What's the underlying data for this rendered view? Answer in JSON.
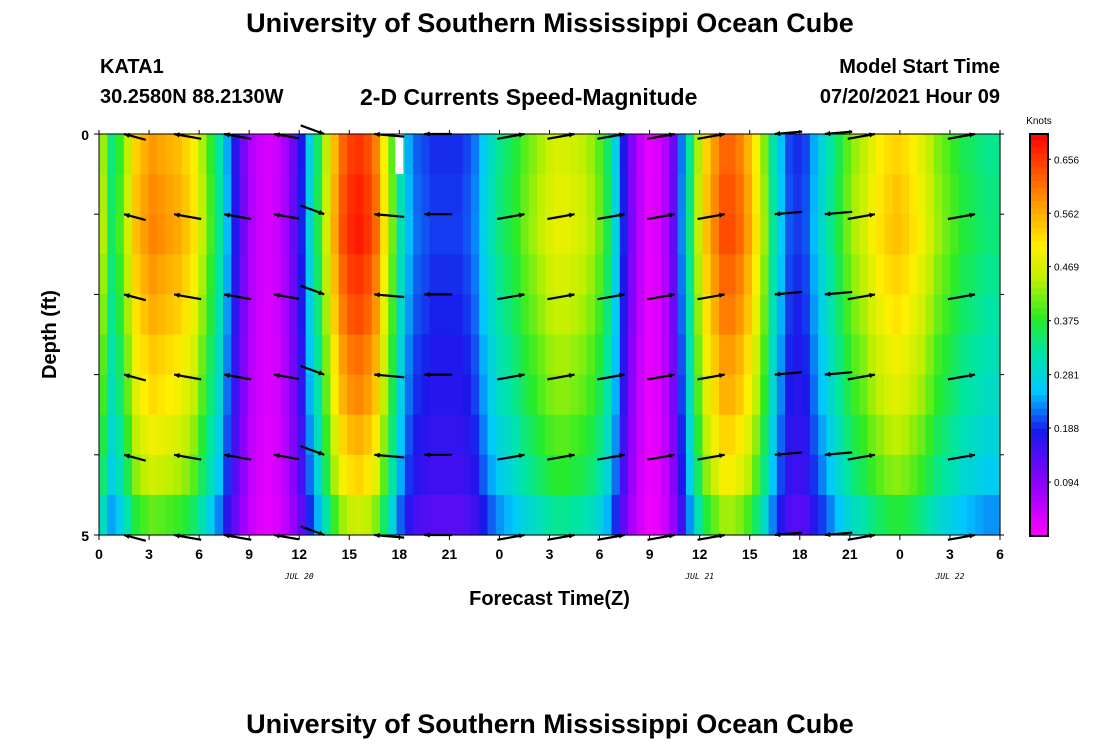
{
  "header": {
    "title": "University of Southern Mississippi Ocean Cube",
    "station_id": "KATA1",
    "station_coords": "30.2580N  88.2130W",
    "chart_title": "2-D Currents Speed-Magnitude",
    "model_start_label": "Model Start Time",
    "model_start_value": "07/20/2021 Hour 09"
  },
  "footer": {
    "title": "University of Southern Mississippi Ocean Cube"
  },
  "chart_data": {
    "type": "heatmap",
    "title": "2-D Currents Speed-Magnitude",
    "xlabel": "Forecast Time(Z)",
    "ylabel": "Depth (ft)",
    "xlim": [
      0,
      54
    ],
    "ylim": [
      0,
      5
    ],
    "x_ticks": [
      0,
      3,
      6,
      9,
      12,
      15,
      18,
      21,
      24,
      27,
      30,
      33,
      36,
      39,
      42,
      45,
      48,
      51,
      54
    ],
    "x_tick_labels": [
      "0",
      "3",
      "6",
      "9",
      "12",
      "15",
      "18",
      "21",
      "0",
      "3",
      "6",
      "9",
      "12",
      "15",
      "18",
      "21",
      "0",
      "3",
      "6"
    ],
    "y_ticks": [
      0,
      5
    ],
    "y_tick_labels": [
      "0",
      "5"
    ],
    "date_labels": [
      {
        "text": "JUL 20",
        "x": 12
      },
      {
        "text": "JUL 21",
        "x": 36
      },
      {
        "text": "JUL 22",
        "x": 51
      }
    ],
    "colorbar": {
      "unit": "Knots",
      "min": 0.0,
      "max": 0.7,
      "tick_values": [
        0.094,
        0.188,
        0.281,
        0.375,
        0.469,
        0.562,
        0.656
      ],
      "tick_labels": [
        "0.094",
        "0.188",
        "0.281",
        "0.375",
        "0.469",
        "0.562",
        "0.656"
      ]
    },
    "speed_by_hour": [
      0.43,
      0.34,
      0.38,
      0.45,
      0.53,
      0.56,
      0.58,
      0.57,
      0.56,
      0.55,
      0.53,
      0.5,
      0.44,
      0.38,
      0.32,
      0.24,
      0.17,
      0.11,
      0.06,
      0.04,
      0.03,
      0.04,
      0.07,
      0.12,
      0.18,
      0.27,
      0.35,
      0.45,
      0.55,
      0.62,
      0.65,
      0.66,
      0.64,
      0.6,
      0.5,
      0.4,
      0.3,
      0.24,
      0.21,
      0.2,
      0.19,
      0.19,
      0.19,
      0.19,
      0.2,
      0.22,
      0.26,
      0.3,
      0.33,
      0.35,
      0.37,
      0.4,
      0.42,
      0.44,
      0.46,
      0.47,
      0.47,
      0.46,
      0.45,
      0.43,
      0.4,
      0.35,
      0.27,
      0.18,
      0.1,
      0.05,
      0.02,
      0.03,
      0.06,
      0.12,
      0.22,
      0.33,
      0.44,
      0.53,
      0.58,
      0.62,
      0.62,
      0.6,
      0.56,
      0.5,
      0.42,
      0.32,
      0.25,
      0.2,
      0.19,
      0.2,
      0.24,
      0.28,
      0.32,
      0.36,
      0.4,
      0.43,
      0.45,
      0.48,
      0.5,
      0.52,
      0.53,
      0.52,
      0.5,
      0.48,
      0.45,
      0.42,
      0.4,
      0.38,
      0.36,
      0.35,
      0.34,
      0.33,
      0.33
    ],
    "depth_factor": [
      1.0,
      1.02,
      1.03,
      1.0,
      0.97,
      0.93,
      0.9,
      0.85,
      0.8,
      0.7
    ],
    "vectors": {
      "x": [
        1.5,
        4.5,
        7.5,
        10.5,
        13.5,
        16.5,
        19.5,
        25.5,
        28.5,
        31.5,
        34.5,
        37.5,
        40.5,
        43.5,
        46.5,
        52.5
      ],
      "y": [
        0,
        1,
        2,
        3,
        4,
        5
      ],
      "dir_deg": [
        285,
        280,
        280,
        280,
        110,
        275,
        270,
        80,
        80,
        80,
        80,
        80,
        265,
        265,
        80,
        80
      ],
      "len": [
        0.45,
        0.55,
        0.55,
        0.5,
        0.5,
        0.6,
        0.55,
        0.55,
        0.55,
        0.55,
        0.55,
        0.55,
        0.55,
        0.55,
        0.55,
        0.55
      ]
    },
    "missing_marker": {
      "x": 18,
      "y_range": [
        0,
        0.5
      ]
    }
  }
}
